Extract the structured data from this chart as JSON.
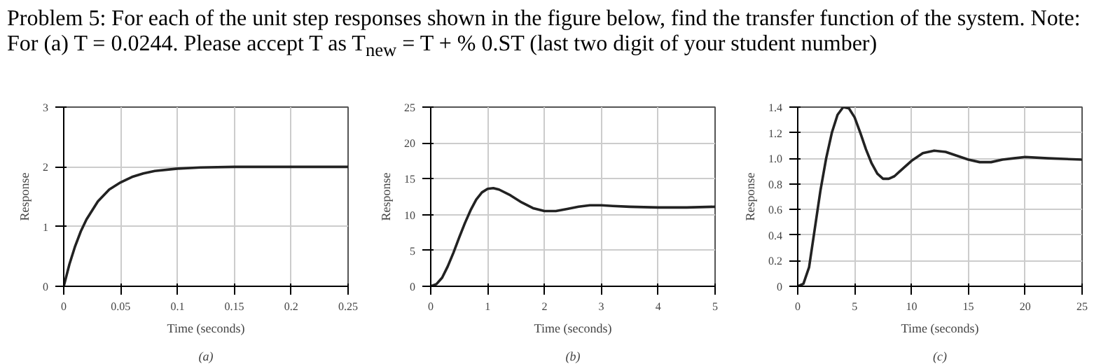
{
  "chart_data": [
    {
      "type": "line",
      "title": "Problem 5: For each of the unit step responses shown in the figure below, find the transfer function of the system. Note: For (a) T = 0.0244. Please accept T as T$_{new}$ = T + % 0.ST (last two digit of your student number)",
      "xlabel": "Time (seconds)",
      "ylabel": "Response",
      "annotations": [
        "(a)"
      ],
      "color": "#222222",
      "grid": true,
      "x": [
        0,
        0.005,
        0.01,
        0.015,
        0.02,
        0.03,
        0.04,
        0.05,
        0.06,
        0.07,
        0.08,
        0.1,
        0.12,
        0.15,
        0.2,
        0.25
      ],
      "values": [
        0,
        0.37,
        0.67,
        0.92,
        1.12,
        1.42,
        1.62,
        1.74,
        1.83,
        1.89,
        1.93,
        1.97,
        1.99,
        2.0,
        2.0,
        2.0
      ],
      "xlim": [
        0,
        0.25
      ],
      "ylim": [
        0,
        3
      ],
      "xticks": [
        0,
        0.05,
        0.1,
        0.15,
        0.2,
        0.25
      ],
      "yticks": [
        0,
        1,
        2,
        3
      ]
    },
    {
      "type": "line",
      "xlabel": "Time (seconds)",
      "ylabel": "Response",
      "annotations": [
        "(b)"
      ],
      "color": "#222222",
      "grid": true,
      "x": [
        0,
        0.1,
        0.2,
        0.3,
        0.4,
        0.5,
        0.6,
        0.7,
        0.8,
        0.9,
        1.0,
        1.1,
        1.2,
        1.4,
        1.6,
        1.8,
        2.0,
        2.2,
        2.4,
        2.6,
        2.8,
        3.0,
        3.2,
        3.5,
        4,
        4.5,
        5
      ],
      "values": [
        0,
        0.3,
        1.2,
        2.8,
        4.7,
        6.8,
        8.8,
        10.6,
        12.1,
        13.1,
        13.6,
        13.7,
        13.5,
        12.7,
        11.7,
        10.9,
        10.5,
        10.5,
        10.8,
        11.1,
        11.3,
        11.3,
        11.2,
        11.1,
        11.0,
        11.0,
        11.1
      ],
      "xlim": [
        0,
        5
      ],
      "ylim": [
        0,
        25
      ],
      "xticks": [
        0,
        1,
        2,
        3,
        4,
        5
      ],
      "yticks": [
        0,
        5,
        10,
        15,
        20,
        25
      ]
    },
    {
      "type": "line",
      "xlabel": "Time (seconds)",
      "ylabel": "Response",
      "annotations": [
        "(c)"
      ],
      "color": "#222222",
      "grid": true,
      "x": [
        0,
        0.5,
        1,
        1.5,
        2,
        2.5,
        3,
        3.5,
        4,
        4.5,
        5,
        5.5,
        6,
        6.5,
        7,
        7.5,
        8,
        8.5,
        9,
        10,
        11,
        12,
        13,
        14,
        15,
        16,
        17,
        18,
        19,
        20,
        22,
        25
      ],
      "values": [
        0,
        0.02,
        0.15,
        0.45,
        0.75,
        1.0,
        1.2,
        1.34,
        1.4,
        1.39,
        1.32,
        1.2,
        1.07,
        0.96,
        0.88,
        0.84,
        0.84,
        0.86,
        0.9,
        0.98,
        1.04,
        1.06,
        1.05,
        1.02,
        0.99,
        0.97,
        0.97,
        0.99,
        1.0,
        1.01,
        1.0,
        0.99
      ],
      "xlim": [
        0,
        25
      ],
      "ylim": [
        0,
        1.4
      ],
      "xticks": [
        0,
        5,
        10,
        15,
        20,
        25
      ],
      "yticks": [
        0,
        0.2,
        0.4,
        0.6,
        0.8,
        {
          "value": 1.0,
          "label": "1.0"
        },
        1.2,
        1.4
      ]
    }
  ]
}
